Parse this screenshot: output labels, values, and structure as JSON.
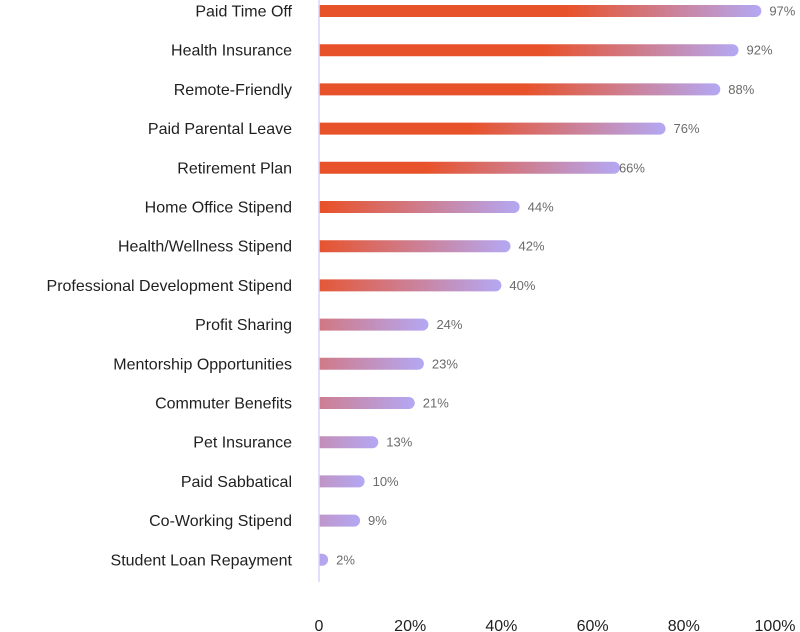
{
  "chart_data": {
    "type": "bar",
    "orientation": "horizontal",
    "categories": [
      "Paid Time Off",
      "Health Insurance",
      "Remote-Friendly",
      "Paid Parental Leave",
      "Retirement Plan",
      "Home Office Stipend",
      "Health/Wellness Stipend",
      "Professional Development Stipend",
      "Profit Sharing",
      "Mentorship Opportunities",
      "Commuter Benefits",
      "Pet Insurance",
      "Paid Sabbatical",
      "Co-Working Stipend",
      "Student Loan Repayment"
    ],
    "values": [
      97,
      92,
      88,
      76,
      66,
      44,
      42,
      40,
      24,
      23,
      21,
      13,
      10,
      9,
      2
    ],
    "value_labels": [
      "97%",
      "92%",
      "88%",
      "76%",
      "66%",
      "44%",
      "42%",
      "40%",
      "24%",
      "23%",
      "21%",
      "13%",
      "10%",
      "9%",
      "2%"
    ],
    "xlim": [
      0,
      100
    ],
    "xticks": [
      "0",
      "20%",
      "40%",
      "60%",
      "80%",
      "100%"
    ],
    "title": "",
    "xlabel": "",
    "ylabel": "",
    "grid": false,
    "colors": {
      "gradient_start": "#e8522a",
      "gradient_end": "#b4a8f4",
      "axis": "#d9d3fa"
    }
  }
}
